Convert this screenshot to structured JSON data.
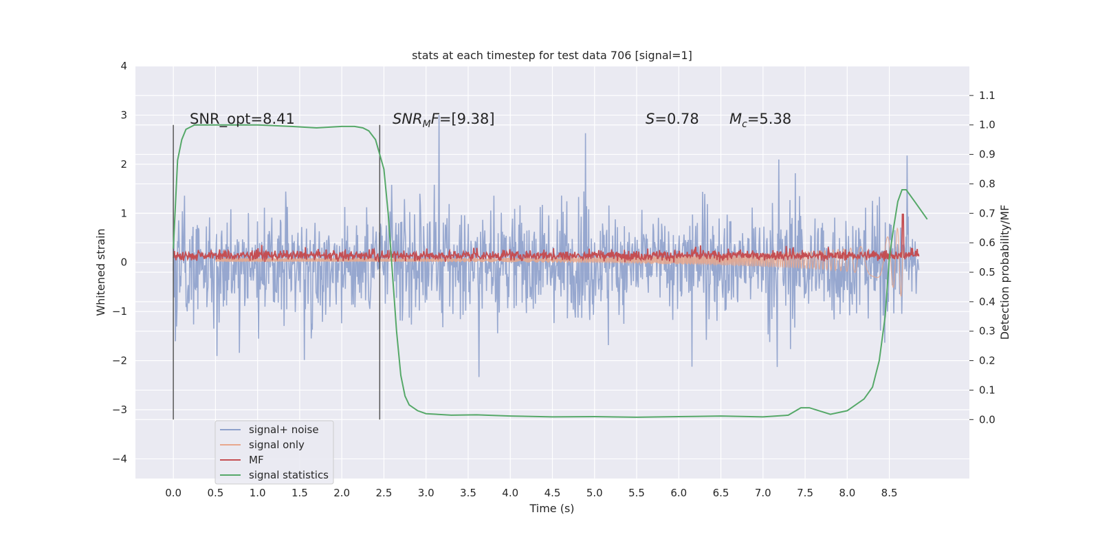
{
  "chart_data": {
    "type": "line",
    "title": "stats at each timestep for test data 706 [signal=1]",
    "xlabel": "Time (s)",
    "ylabel": "Whitened strain",
    "y2label": "Detection probability/MF",
    "xlim": [
      -0.45,
      9.45
    ],
    "ylim": [
      -4.4,
      4.0
    ],
    "y2lim": [
      -0.2,
      1.2
    ],
    "xticks": [
      "0.0",
      "0.5",
      "1.0",
      "1.5",
      "2.0",
      "2.5",
      "3.0",
      "3.5",
      "4.0",
      "4.5",
      "5.0",
      "5.5",
      "6.0",
      "6.5",
      "7.0",
      "7.5",
      "8.0",
      "8.5"
    ],
    "yticks": [
      "4",
      "3",
      "2",
      "1",
      "0",
      "−1",
      "−2",
      "−3",
      "−4"
    ],
    "y2ticks": [
      "1.1",
      "1.0",
      "0.9",
      "0.8",
      "0.7",
      "0.6",
      "0.5",
      "0.4",
      "0.3",
      "0.2",
      "0.1",
      "0.0"
    ],
    "grid": true,
    "legend_position": "lower-left",
    "annotations": {
      "snr_opt": "SNR_opt=8.41",
      "snr_mf_base": "SNR",
      "snr_mf_sub": "M",
      "snr_mf_rest": "F=[9.38]",
      "s_sym": "S",
      "s_val": "=0.78",
      "mc_sym": "M",
      "mc_sub": "c",
      "mc_val": "=5.38"
    },
    "vlines_x": [
      0.0,
      2.45
    ],
    "noise_x_range": [
      0.0,
      8.85
    ],
    "signal_end_x": 8.66,
    "series": [
      {
        "name": "signal+ noise",
        "color": "#8da0cb"
      },
      {
        "name": "signal only",
        "color": "#e8a78c"
      },
      {
        "name": "MF",
        "color": "#c44e52"
      },
      {
        "name": "signal statistics",
        "color": "#55a868",
        "axis": "right",
        "x": [
          0.0,
          0.05,
          0.1,
          0.15,
          0.25,
          0.4,
          0.6,
          1.0,
          1.4,
          1.7,
          2.0,
          2.15,
          2.25,
          2.32,
          2.4,
          2.5,
          2.55,
          2.6,
          2.65,
          2.7,
          2.75,
          2.8,
          2.9,
          3.0,
          3.3,
          3.6,
          4.0,
          4.5,
          5.0,
          5.5,
          6.0,
          6.5,
          7.0,
          7.3,
          7.45,
          7.55,
          7.8,
          8.0,
          8.2,
          8.3,
          8.38,
          8.45,
          8.5,
          8.55,
          8.6,
          8.65,
          8.7,
          8.8,
          8.9,
          8.95
        ],
        "y": [
          0.58,
          0.88,
          0.95,
          0.985,
          1.0,
          1.0,
          1.0,
          1.0,
          0.995,
          0.99,
          0.995,
          0.995,
          0.99,
          0.98,
          0.95,
          0.85,
          0.7,
          0.5,
          0.3,
          0.15,
          0.08,
          0.05,
          0.03,
          0.02,
          0.015,
          0.016,
          0.012,
          0.009,
          0.01,
          0.008,
          0.01,
          0.012,
          0.009,
          0.015,
          0.04,
          0.04,
          0.018,
          0.03,
          0.07,
          0.11,
          0.2,
          0.35,
          0.55,
          0.65,
          0.74,
          0.78,
          0.78,
          0.74,
          0.7,
          0.68
        ]
      }
    ]
  }
}
